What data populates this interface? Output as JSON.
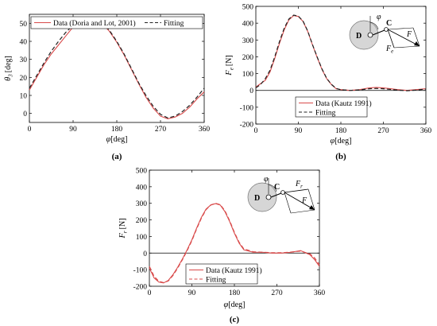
{
  "colors": {
    "data_line": "#d94a4a",
    "fit_line": "#222222",
    "zero_line": "#000000",
    "disk_fill": "#d6d6d6",
    "watermark": "#c8d4f0"
  },
  "chart_data": [
    {
      "id": "a",
      "type": "line",
      "caption": "(a)",
      "ylabel": "θ",
      "ylabel_sub": "3",
      "ylabel_unit": "[deg]",
      "xlabel": "φ",
      "xlabel_unit": "[deg]",
      "xlim": [
        0,
        360
      ],
      "ylim": [
        -5,
        55
      ],
      "xticks": [
        0,
        90,
        180,
        270,
        360
      ],
      "yticks": [
        0,
        10,
        20,
        30,
        40,
        50
      ],
      "legend_position": "top",
      "series": [
        {
          "name": "Data (Doria and Lot, 2001)",
          "style": "solid",
          "x": [
            0,
            15,
            30,
            45,
            60,
            75,
            90,
            105,
            120,
            135,
            150,
            165,
            180,
            195,
            210,
            225,
            240,
            255,
            270,
            285,
            300,
            315,
            330,
            345,
            360
          ],
          "y": [
            13,
            20,
            27,
            33,
            38,
            43,
            48,
            51,
            52.5,
            52.5,
            50,
            45.5,
            39.5,
            32.5,
            24.5,
            16.5,
            9,
            3,
            -1.5,
            -3,
            -2,
            0,
            3.5,
            8,
            12
          ]
        },
        {
          "name": "Fitting",
          "style": "dashed",
          "x": [
            0,
            15,
            30,
            45,
            60,
            75,
            90,
            105,
            120,
            135,
            150,
            165,
            180,
            195,
            210,
            225,
            240,
            255,
            270,
            285,
            300,
            315,
            330,
            345,
            360
          ],
          "y": [
            14,
            21,
            28,
            34.5,
            40,
            45,
            49,
            51.5,
            53,
            52.5,
            50.5,
            46,
            40,
            33,
            25,
            17,
            10,
            4,
            -0.5,
            -2.5,
            -1.5,
            1,
            4.5,
            9,
            14
          ]
        }
      ]
    },
    {
      "id": "b",
      "type": "line",
      "caption": "(b)",
      "ylabel": "F",
      "ylabel_sub": "e",
      "ylabel_unit": "[N]",
      "xlabel": "φ",
      "xlabel_unit": "[deg]",
      "xlim": [
        0,
        360
      ],
      "ylim": [
        -200,
        500
      ],
      "xticks": [
        0,
        90,
        180,
        270,
        360
      ],
      "yticks": [
        -200,
        -100,
        0,
        100,
        200,
        300,
        400,
        500
      ],
      "zero_line": true,
      "legend_position": "bottom-left",
      "inset_labels": {
        "point_d": "D",
        "point_c": "C",
        "angle": "φ",
        "force": "F",
        "component": "F",
        "component_sub": "e"
      },
      "series": [
        {
          "name": "Data (Kautz 1991)",
          "style": "solid",
          "x": [
            0,
            10,
            20,
            30,
            40,
            50,
            60,
            70,
            80,
            90,
            100,
            110,
            120,
            130,
            140,
            150,
            160,
            170,
            180,
            200,
            220,
            240,
            255,
            270,
            285,
            300,
            320,
            340,
            360
          ],
          "y": [
            20,
            40,
            60,
            110,
            190,
            280,
            360,
            420,
            445,
            440,
            410,
            350,
            270,
            195,
            125,
            70,
            35,
            10,
            5,
            0,
            5,
            15,
            18,
            15,
            10,
            5,
            0,
            5,
            10
          ]
        },
        {
          "name": "Fitting",
          "style": "dashed",
          "x": [
            0,
            10,
            20,
            30,
            40,
            50,
            60,
            70,
            80,
            90,
            100,
            110,
            120,
            130,
            140,
            150,
            160,
            170,
            180,
            200,
            220,
            240,
            255,
            270,
            285,
            300,
            320,
            340,
            360
          ],
          "y": [
            15,
            35,
            70,
            120,
            200,
            290,
            370,
            425,
            448,
            442,
            412,
            352,
            272,
            198,
            128,
            72,
            36,
            12,
            4,
            0,
            3,
            10,
            12,
            10,
            6,
            2,
            -2,
            2,
            8
          ]
        }
      ]
    },
    {
      "id": "c",
      "type": "line",
      "caption": "(c)",
      "ylabel": "F",
      "ylabel_sub": "r",
      "ylabel_unit": "[N]",
      "xlabel": "φ",
      "xlabel_unit": "[deg]",
      "xlim": [
        0,
        360
      ],
      "ylim": [
        -200,
        500
      ],
      "xticks": [
        0,
        90,
        180,
        270,
        360
      ],
      "yticks": [
        -200,
        -100,
        0,
        100,
        200,
        300,
        400,
        500
      ],
      "zero_line": true,
      "legend_position": "bottom-left",
      "inset_labels": {
        "point_d": "D",
        "point_c": "C",
        "angle": "φ",
        "force": "F",
        "component": "F",
        "component_sub": "r"
      },
      "series": [
        {
          "name": "Data (Kautz 1991)",
          "style": "solid",
          "x": [
            0,
            10,
            20,
            30,
            40,
            50,
            60,
            70,
            80,
            90,
            100,
            110,
            120,
            130,
            140,
            150,
            160,
            170,
            180,
            190,
            200,
            220,
            240,
            260,
            280,
            300,
            320,
            340,
            350,
            360
          ],
          "y": [
            -90,
            -150,
            -175,
            -180,
            -165,
            -130,
            -85,
            -35,
            20,
            80,
            150,
            215,
            265,
            290,
            298,
            290,
            250,
            190,
            120,
            60,
            20,
            5,
            5,
            0,
            0,
            5,
            15,
            -10,
            -40,
            -80
          ]
        },
        {
          "name": "Fitting",
          "style": "dashed",
          "x": [
            0,
            10,
            20,
            30,
            40,
            50,
            60,
            70,
            80,
            90,
            100,
            110,
            120,
            130,
            140,
            150,
            160,
            170,
            180,
            190,
            200,
            220,
            240,
            260,
            280,
            300,
            320,
            340,
            350,
            360
          ],
          "y": [
            -80,
            -140,
            -170,
            -178,
            -168,
            -135,
            -90,
            -40,
            15,
            75,
            145,
            210,
            262,
            290,
            300,
            292,
            255,
            195,
            125,
            65,
            25,
            8,
            5,
            2,
            2,
            6,
            12,
            -5,
            -30,
            -70
          ]
        }
      ]
    }
  ]
}
